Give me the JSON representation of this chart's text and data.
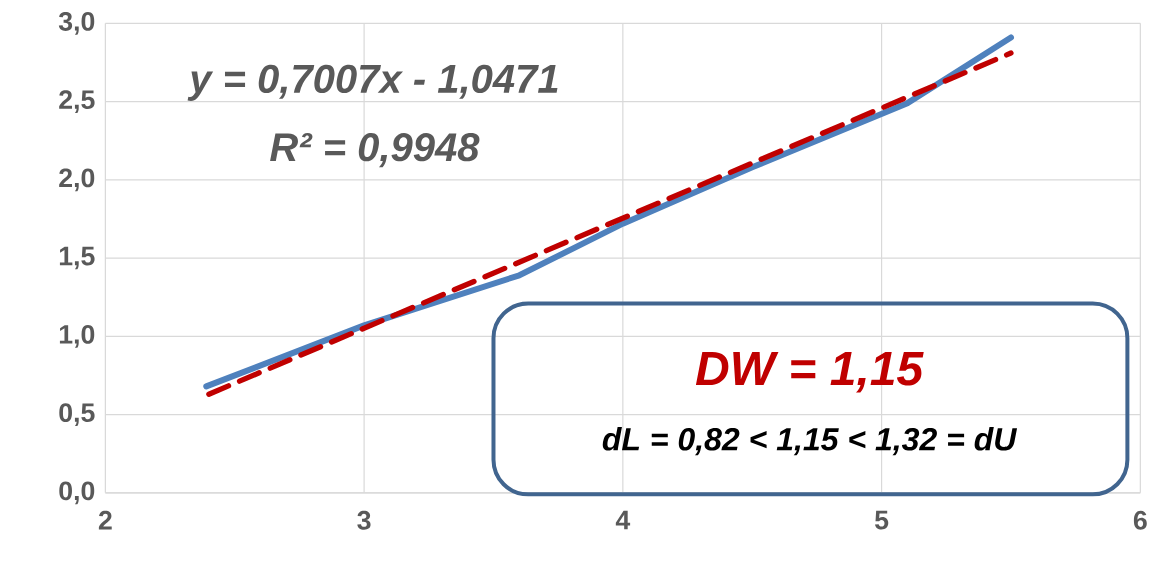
{
  "chart_data": {
    "type": "line",
    "series": [
      {
        "color": "#4f81bd",
        "line_style": "solid",
        "x": [
          2.39,
          3.0,
          3.6,
          4.0,
          4.5,
          5.1,
          5.5
        ],
        "values": [
          0.68,
          1.07,
          1.39,
          1.72,
          2.08,
          2.49,
          2.91
        ]
      },
      {
        "color": "#c00000",
        "line_style": "dashed",
        "x": [
          2.4,
          5.5
        ],
        "values": [
          0.63,
          2.81
        ]
      }
    ],
    "xlim": [
      2,
      6
    ],
    "ylim": [
      0,
      3
    ],
    "xticks": [
      2,
      3,
      4,
      5,
      6
    ],
    "yticks": [
      {
        "value": 0,
        "label": "0,0"
      },
      {
        "value": 0.5,
        "label": "0,5"
      },
      {
        "value": 1,
        "label": "1,0"
      },
      {
        "value": 1.5,
        "label": "1,5"
      },
      {
        "value": 2,
        "label": "2,0"
      },
      {
        "value": 2.5,
        "label": "2,5"
      },
      {
        "value": 3,
        "label": "3,0"
      }
    ],
    "grid": true,
    "marker": "none",
    "annotations": [
      "y = 0,7007x - 1,0471",
      "R² = 0,9948",
      "DW = 1,15",
      "dL = 0,82 < 1,15 < 1,32 = dU"
    ]
  }
}
